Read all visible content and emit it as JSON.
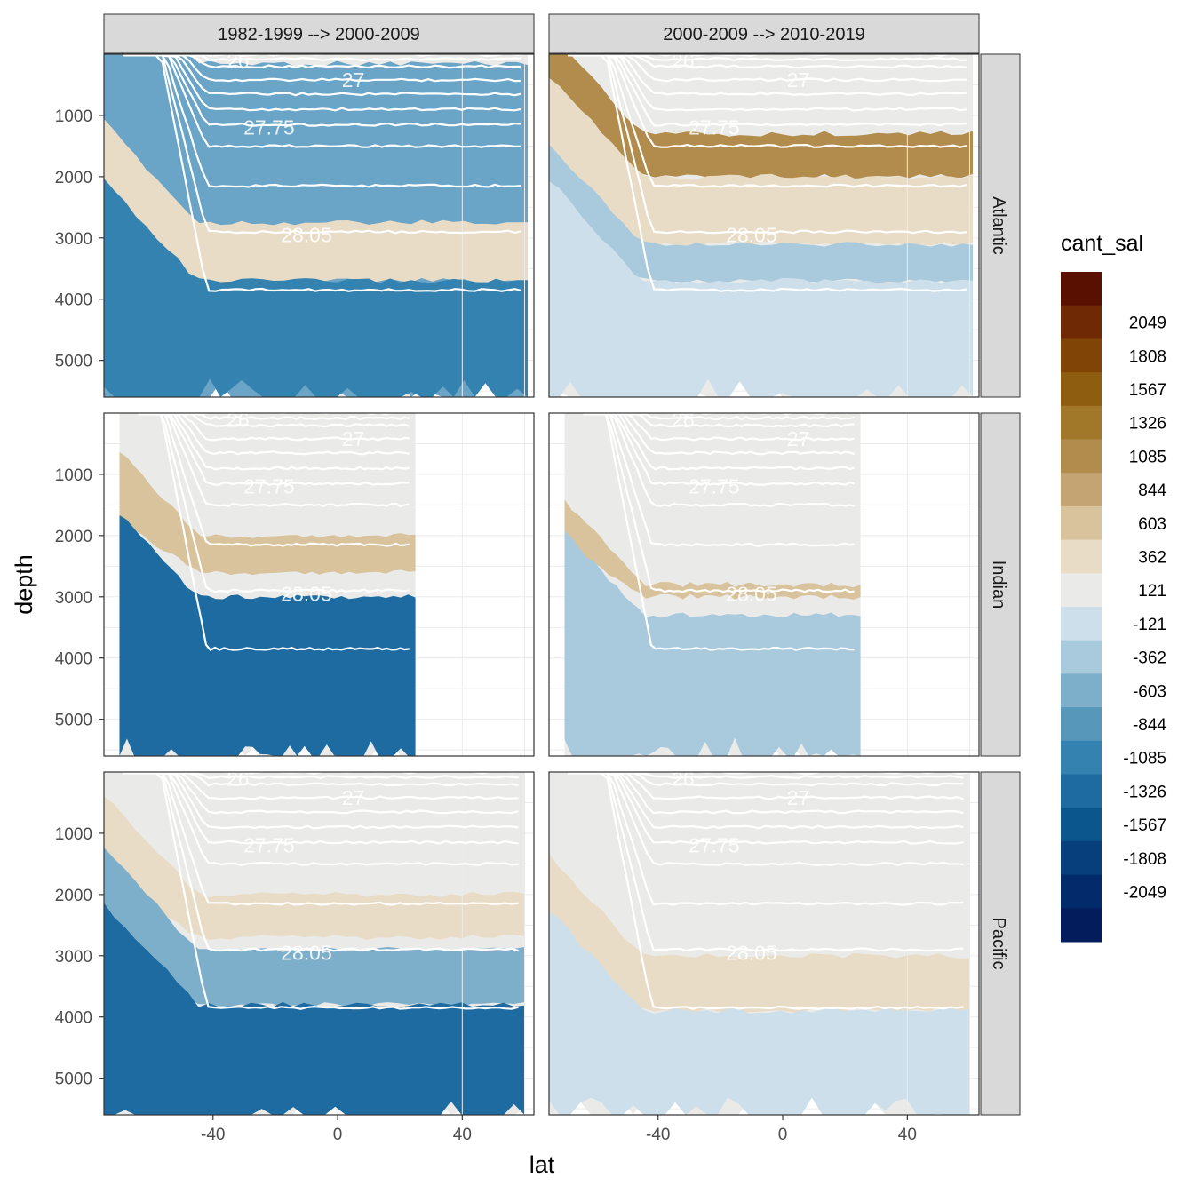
{
  "chart_data": {
    "type": "faceted-contour",
    "xlabel": "lat",
    "ylabel": "depth",
    "x_ticks": [
      -40,
      0,
      40
    ],
    "y_ticks": [
      1000,
      2000,
      3000,
      4000,
      5000
    ],
    "xlim": [
      -75,
      63
    ],
    "ylim": [
      5600,
      0
    ],
    "columns": [
      "1982-1999 --> 2000-2009",
      "2000-2009 --> 2010-2019"
    ],
    "rows": [
      "Atlantic",
      "Indian",
      "Pacific"
    ],
    "legend": {
      "title": "cant_sal",
      "labels": [
        "2049",
        "1808",
        "1567",
        "1326",
        "1085",
        "844",
        "603",
        "362",
        "121",
        "-121",
        "-362",
        "-603",
        "-844",
        "-1085",
        "-1326",
        "-1567",
        "-1808",
        "-2049"
      ],
      "colors": [
        "#5a1000",
        "#6f2a05",
        "#7f4406",
        "#8f5d10",
        "#a17729",
        "#b28c4c",
        "#c4a472",
        "#d8c39c",
        "#e9dcc7",
        "#eaebe9",
        "#cddfea",
        "#a9c9dd",
        "#7eafca",
        "#5797ba",
        "#3482b0",
        "#1d6ba1",
        "#0a568d",
        "#063f7c",
        "#032a6a",
        "#021c5c"
      ]
    },
    "isopycnal_labels": [
      "26",
      "27",
      "27.75",
      "28.05"
    ],
    "panels": [
      {
        "column": 0,
        "row": 0,
        "layers": [
          [
            "#eaebe9",
            0,
            5600
          ],
          [
            "#6aa4c6",
            150,
            5600
          ],
          [
            "#e9dcc7",
            2750,
            3700
          ],
          [
            "#3482b0",
            3700,
            5600
          ]
        ]
      },
      {
        "column": 1,
        "row": 0,
        "layers": [
          [
            "#eaebe9",
            0,
            5600
          ],
          [
            "#b28c4c",
            1300,
            2000
          ],
          [
            "#e9dcc7",
            2000,
            3100
          ],
          [
            "#a9c9dd",
            3100,
            3700
          ],
          [
            "#cddfea",
            3700,
            5600
          ]
        ]
      },
      {
        "column": 0,
        "row": 1,
        "layers": [
          [
            "#eaebe9",
            0,
            5600
          ],
          [
            "#d8c39c",
            2000,
            2600
          ],
          [
            "#1d6ba1",
            3000,
            5600
          ]
        ]
      },
      {
        "column": 1,
        "row": 1,
        "layers": [
          [
            "#eaebe9",
            0,
            5600
          ],
          [
            "#d8c39c",
            2800,
            3000
          ],
          [
            "#a9c9dd",
            3300,
            5600
          ]
        ]
      },
      {
        "column": 0,
        "row": 2,
        "layers": [
          [
            "#eaebe9",
            0,
            5600
          ],
          [
            "#e9dcc7",
            2000,
            2700
          ],
          [
            "#7eafca",
            2900,
            3800
          ],
          [
            "#1d6ba1",
            3800,
            5600
          ]
        ]
      },
      {
        "column": 1,
        "row": 2,
        "layers": [
          [
            "#eaebe9",
            0,
            5600
          ],
          [
            "#e9dcc7",
            3000,
            3900
          ],
          [
            "#cddfea",
            3900,
            5600
          ]
        ]
      }
    ]
  }
}
